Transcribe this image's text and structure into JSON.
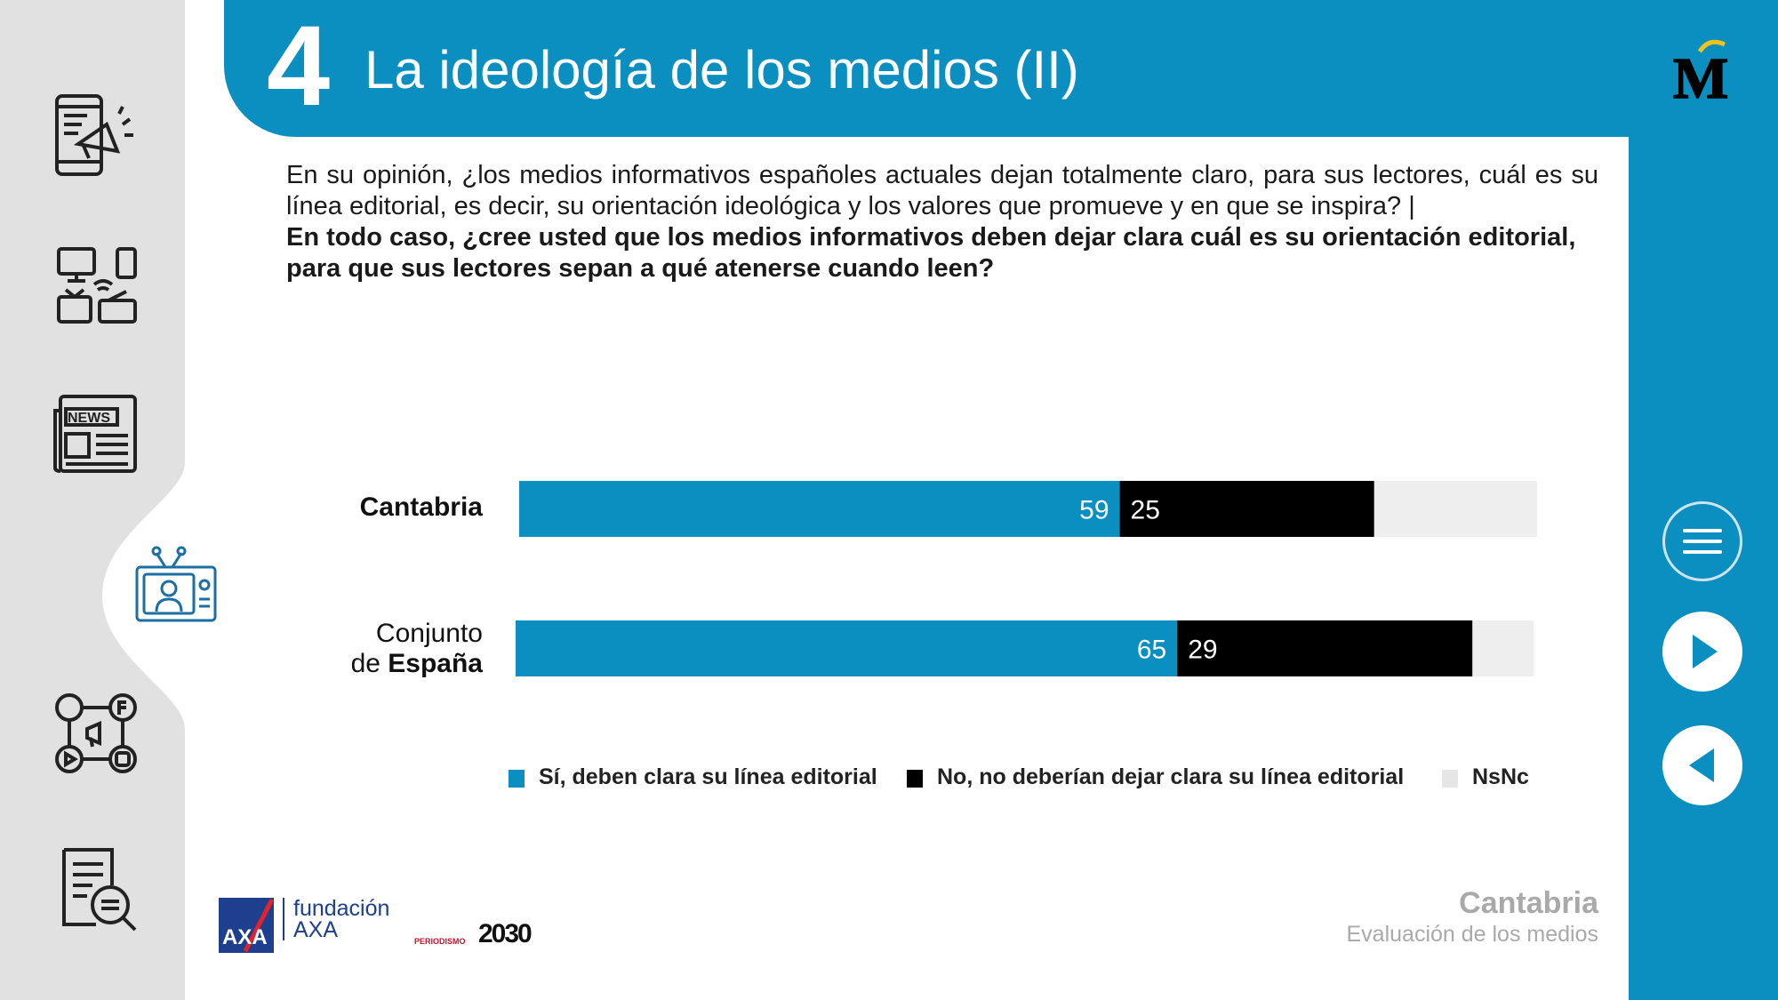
{
  "header": {
    "chapter_number": "4",
    "title": "La ideología de los medios (II)"
  },
  "question": {
    "main": "En su opinión, ¿los medios informativos españoles actuales dejan totalmente claro, para sus lectores, cuál es su línea editorial, es decir, su orientación ideológica y los valores que promueve y en que se inspira? |",
    "sub": "En todo caso, ¿cree usted que los medios informativos deben dejar clara cuál es su orientación editorial, para que sus lectores sepan a qué atenerse cuando leen?"
  },
  "chart_data": {
    "type": "bar",
    "orientation": "horizontal",
    "stacked": true,
    "categories": [
      "Cantabria",
      "Conjunto de España"
    ],
    "series": [
      {
        "name": "Sí, deben clara su línea editorial",
        "values": [
          59,
          65
        ],
        "color": "#0a8fc0"
      },
      {
        "name": "No, no deberían dejar clara su línea editorial",
        "values": [
          25,
          29
        ],
        "color": "#000000"
      },
      {
        "name": "NsNc",
        "values": [
          16,
          6
        ],
        "color": "#eeeeee"
      }
    ],
    "data_labels": [
      [
        "59",
        "25"
      ],
      [
        "65",
        "29"
      ]
    ],
    "xlim": [
      0,
      100
    ],
    "legend_position": "bottom",
    "grid": false
  },
  "category_labels": {
    "cantabria": "Cantabria",
    "espana_line1": "Conjunto",
    "espana_prefix": "de ",
    "espana_bold": "España"
  },
  "footer": {
    "region": "Cantabria",
    "subtitle": "Evaluación de los medios",
    "partner_name_line1": "fundación",
    "partner_name_line2": "AXA",
    "partner_logo_text": "AXA",
    "periodismo_small": "PERIODISMO",
    "periodismo_big": "2030"
  },
  "brand_logo_text": "M",
  "rail_icons": [
    "mobile-megaphone-icon",
    "devices-icon",
    "newspaper-icon",
    "tv-icon",
    "social-media-icon",
    "document-search-icon"
  ],
  "nav": [
    "menu-icon",
    "play-icon",
    "back-icon"
  ]
}
